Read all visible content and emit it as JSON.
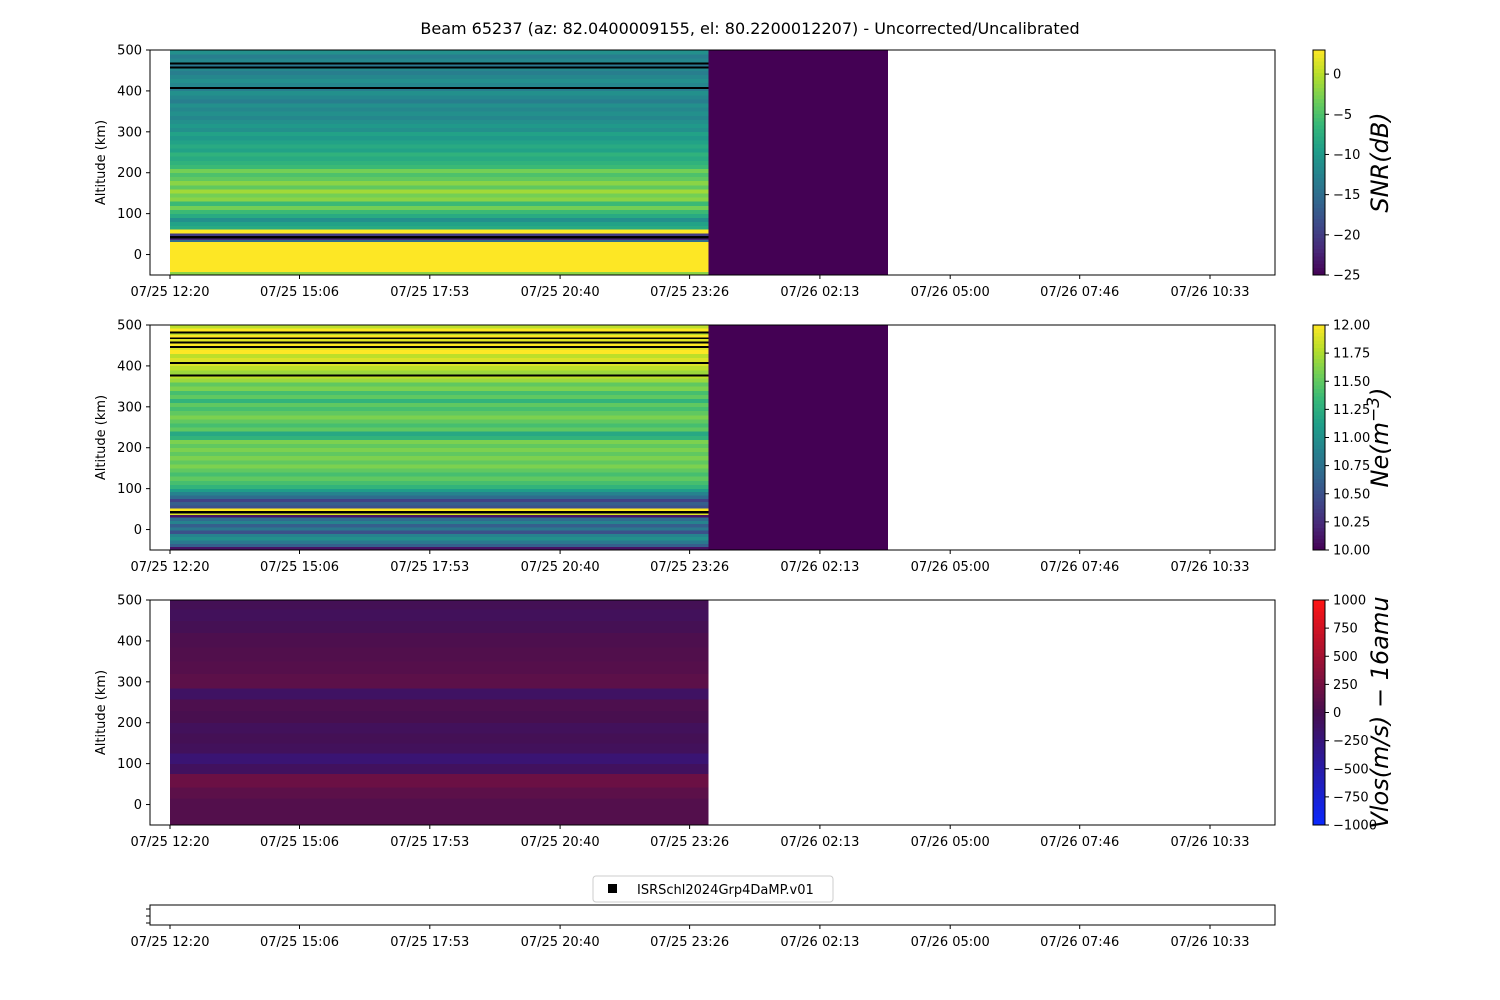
{
  "title": "Beam 65237 (az: 82.0400009155, el: 80.2200012207) - Uncorrected/Uncalibrated",
  "x_tick_labels": [
    "07/25 12:20",
    "07/25 15:06",
    "07/25 17:53",
    "07/25 20:40",
    "07/25 23:26",
    "07/26 02:13",
    "07/26 05:00",
    "07/26 07:46",
    "07/26 10:33"
  ],
  "legend": {
    "label": "ISRSchl2024Grp4DaMP.v01",
    "marker_color": "#000000"
  },
  "colors": {
    "no_data": "#440154",
    "missing": "#000000"
  },
  "chart_data": [
    {
      "type": "heatmap",
      "name": "snr",
      "ylabel": "Altitude (km)",
      "ylim": [
        -50,
        500
      ],
      "y_ticks": [
        "0",
        "100",
        "200",
        "300",
        "400",
        "500"
      ],
      "colorbar": {
        "label": "SNR(dB)",
        "range": [
          -25,
          3
        ],
        "ticks": [
          "0",
          "−5",
          "−10",
          "−15",
          "−20",
          "−25"
        ],
        "colormap": "viridis"
      },
      "data_period": [
        "07/25 12:20",
        "07/25 23:50"
      ],
      "empty_period": [
        "07/25 23:50",
        "07/26 03:40"
      ],
      "rows": [
        {
          "y0": -50,
          "y1": -42,
          "value": -2
        },
        {
          "y0": -42,
          "y1": 32,
          "value": 3
        },
        {
          "y0": 32,
          "y1": 36,
          "value": -15
        },
        {
          "y0": 36,
          "y1": 40,
          "value": -22
        },
        {
          "y0": 40,
          "y1": 46,
          "value": null
        },
        {
          "y0": 46,
          "y1": 52,
          "value": -20
        },
        {
          "y0": 52,
          "y1": 62,
          "value": 3
        },
        {
          "y0": 62,
          "y1": 70,
          "value": -8
        },
        {
          "y0": 70,
          "y1": 80,
          "value": -9
        },
        {
          "y0": 80,
          "y1": 90,
          "value": -11
        },
        {
          "y0": 90,
          "y1": 100,
          "value": -8
        },
        {
          "y0": 100,
          "y1": 110,
          "value": -6
        },
        {
          "y0": 110,
          "y1": 120,
          "value": -3
        },
        {
          "y0": 120,
          "y1": 130,
          "value": -6
        },
        {
          "y0": 130,
          "y1": 140,
          "value": -2
        },
        {
          "y0": 140,
          "y1": 150,
          "value": -3
        },
        {
          "y0": 150,
          "y1": 160,
          "value": -1
        },
        {
          "y0": 160,
          "y1": 170,
          "value": -4
        },
        {
          "y0": 170,
          "y1": 180,
          "value": -2
        },
        {
          "y0": 180,
          "y1": 190,
          "value": -4
        },
        {
          "y0": 190,
          "y1": 200,
          "value": -5
        },
        {
          "y0": 200,
          "y1": 210,
          "value": -3
        },
        {
          "y0": 210,
          "y1": 220,
          "value": -6
        },
        {
          "y0": 220,
          "y1": 230,
          "value": -7
        },
        {
          "y0": 230,
          "y1": 240,
          "value": -8
        },
        {
          "y0": 240,
          "y1": 250,
          "value": -7
        },
        {
          "y0": 250,
          "y1": 260,
          "value": -9
        },
        {
          "y0": 260,
          "y1": 270,
          "value": -8
        },
        {
          "y0": 270,
          "y1": 280,
          "value": -9
        },
        {
          "y0": 280,
          "y1": 290,
          "value": -10
        },
        {
          "y0": 290,
          "y1": 300,
          "value": -9
        },
        {
          "y0": 300,
          "y1": 310,
          "value": -11
        },
        {
          "y0": 310,
          "y1": 320,
          "value": -10
        },
        {
          "y0": 320,
          "y1": 330,
          "value": -11
        },
        {
          "y0": 330,
          "y1": 340,
          "value": -12
        },
        {
          "y0": 340,
          "y1": 350,
          "value": -11
        },
        {
          "y0": 350,
          "y1": 360,
          "value": -12
        },
        {
          "y0": 360,
          "y1": 370,
          "value": -11
        },
        {
          "y0": 370,
          "y1": 380,
          "value": -13
        },
        {
          "y0": 380,
          "y1": 390,
          "value": -12
        },
        {
          "y0": 390,
          "y1": 400,
          "value": -11
        },
        {
          "y0": 400,
          "y1": 405,
          "value": -13
        },
        {
          "y0": 405,
          "y1": 410,
          "value": null
        },
        {
          "y0": 410,
          "y1": 420,
          "value": -12
        },
        {
          "y0": 420,
          "y1": 430,
          "value": -11
        },
        {
          "y0": 430,
          "y1": 440,
          "value": -12
        },
        {
          "y0": 440,
          "y1": 450,
          "value": -13
        },
        {
          "y0": 450,
          "y1": 456,
          "value": -12
        },
        {
          "y0": 456,
          "y1": 460,
          "value": null
        },
        {
          "y0": 460,
          "y1": 465,
          "value": -14
        },
        {
          "y0": 465,
          "y1": 470,
          "value": null
        },
        {
          "y0": 470,
          "y1": 480,
          "value": -12
        },
        {
          "y0": 480,
          "y1": 490,
          "value": -13
        },
        {
          "y0": 490,
          "y1": 500,
          "value": -11
        }
      ]
    },
    {
      "type": "heatmap",
      "name": "ne",
      "ylabel": "Altitude (km)",
      "ylim": [
        -50,
        500
      ],
      "y_ticks": [
        "0",
        "100",
        "200",
        "300",
        "400",
        "500"
      ],
      "colorbar": {
        "label": "Ne(m^-3)",
        "range": [
          10,
          12
        ],
        "ticks": [
          "12.00",
          "11.75",
          "11.50",
          "11.25",
          "11.00",
          "10.75",
          "10.50",
          "10.25",
          "10.00"
        ],
        "colormap": "viridis"
      },
      "data_period": [
        "07/25 12:20",
        "07/25 23:50"
      ],
      "empty_period": [
        "07/25 23:50",
        "07/26 03:40"
      ],
      "rows": [
        {
          "y0": -50,
          "y1": -42,
          "value": 10.1
        },
        {
          "y0": -42,
          "y1": -34,
          "value": 10.6
        },
        {
          "y0": -34,
          "y1": -26,
          "value": 10.8
        },
        {
          "y0": -26,
          "y1": -18,
          "value": 11.0
        },
        {
          "y0": -18,
          "y1": -10,
          "value": 10.9
        },
        {
          "y0": -10,
          "y1": -2,
          "value": 10.5
        },
        {
          "y0": -2,
          "y1": 6,
          "value": 10.8
        },
        {
          "y0": 6,
          "y1": 14,
          "value": 10.6
        },
        {
          "y0": 14,
          "y1": 22,
          "value": 10.9
        },
        {
          "y0": 22,
          "y1": 30,
          "value": 10.7
        },
        {
          "y0": 30,
          "y1": 36,
          "value": 10.1
        },
        {
          "y0": 36,
          "y1": 40,
          "value": 11.9
        },
        {
          "y0": 40,
          "y1": 46,
          "value": null
        },
        {
          "y0": 46,
          "y1": 52,
          "value": 12.0
        },
        {
          "y0": 52,
          "y1": 60,
          "value": 10.5
        },
        {
          "y0": 60,
          "y1": 68,
          "value": 10.6
        },
        {
          "y0": 68,
          "y1": 76,
          "value": 10.4
        },
        {
          "y0": 76,
          "y1": 84,
          "value": 10.7
        },
        {
          "y0": 84,
          "y1": 92,
          "value": 10.9
        },
        {
          "y0": 92,
          "y1": 100,
          "value": 11.1
        },
        {
          "y0": 100,
          "y1": 110,
          "value": 11.3
        },
        {
          "y0": 110,
          "y1": 120,
          "value": 11.4
        },
        {
          "y0": 120,
          "y1": 130,
          "value": 11.5
        },
        {
          "y0": 130,
          "y1": 140,
          "value": 11.4
        },
        {
          "y0": 140,
          "y1": 150,
          "value": 11.5
        },
        {
          "y0": 150,
          "y1": 160,
          "value": 11.6
        },
        {
          "y0": 160,
          "y1": 170,
          "value": 11.5
        },
        {
          "y0": 170,
          "y1": 180,
          "value": 11.6
        },
        {
          "y0": 180,
          "y1": 190,
          "value": 11.5
        },
        {
          "y0": 190,
          "y1": 200,
          "value": 11.6
        },
        {
          "y0": 200,
          "y1": 210,
          "value": 11.5
        },
        {
          "y0": 210,
          "y1": 220,
          "value": 11.6
        },
        {
          "y0": 220,
          "y1": 230,
          "value": 11.3
        },
        {
          "y0": 230,
          "y1": 240,
          "value": 11.2
        },
        {
          "y0": 240,
          "y1": 250,
          "value": 11.5
        },
        {
          "y0": 250,
          "y1": 260,
          "value": 11.4
        },
        {
          "y0": 260,
          "y1": 270,
          "value": 11.5
        },
        {
          "y0": 270,
          "y1": 280,
          "value": 11.6
        },
        {
          "y0": 280,
          "y1": 290,
          "value": 11.5
        },
        {
          "y0": 290,
          "y1": 300,
          "value": 11.4
        },
        {
          "y0": 300,
          "y1": 310,
          "value": 11.5
        },
        {
          "y0": 310,
          "y1": 320,
          "value": 11.3
        },
        {
          "y0": 320,
          "y1": 330,
          "value": 11.5
        },
        {
          "y0": 330,
          "y1": 340,
          "value": 11.4
        },
        {
          "y0": 340,
          "y1": 350,
          "value": 11.6
        },
        {
          "y0": 350,
          "y1": 360,
          "value": 11.5
        },
        {
          "y0": 360,
          "y1": 370,
          "value": 11.7
        },
        {
          "y0": 370,
          "y1": 375,
          "value": 11.8
        },
        {
          "y0": 375,
          "y1": 380,
          "value": null
        },
        {
          "y0": 380,
          "y1": 390,
          "value": 11.7
        },
        {
          "y0": 390,
          "y1": 400,
          "value": 11.8
        },
        {
          "y0": 400,
          "y1": 405,
          "value": 11.9
        },
        {
          "y0": 405,
          "y1": 410,
          "value": null
        },
        {
          "y0": 410,
          "y1": 420,
          "value": 11.9
        },
        {
          "y0": 420,
          "y1": 430,
          "value": 11.8
        },
        {
          "y0": 430,
          "y1": 440,
          "value": 12.0
        },
        {
          "y0": 440,
          "y1": 445,
          "value": 11.9
        },
        {
          "y0": 445,
          "y1": 450,
          "value": null
        },
        {
          "y0": 450,
          "y1": 456,
          "value": 12.0
        },
        {
          "y0": 456,
          "y1": 460,
          "value": null
        },
        {
          "y0": 460,
          "y1": 466,
          "value": 11.9
        },
        {
          "y0": 466,
          "y1": 470,
          "value": null
        },
        {
          "y0": 470,
          "y1": 476,
          "value": 12.0
        },
        {
          "y0": 476,
          "y1": 480,
          "value": 11.8
        },
        {
          "y0": 480,
          "y1": 485,
          "value": null
        },
        {
          "y0": 485,
          "y1": 492,
          "value": 12.0
        },
        {
          "y0": 492,
          "y1": 500,
          "value": 11.8
        }
      ]
    },
    {
      "type": "heatmap",
      "name": "vlos",
      "ylabel": "Altitude (km)",
      "ylim": [
        -50,
        500
      ],
      "y_ticks": [
        "0",
        "100",
        "200",
        "300",
        "400",
        "500"
      ],
      "colorbar": {
        "label": "Vlos(m/s) - 16amu",
        "range": [
          -1000,
          1000
        ],
        "ticks": [
          "1000",
          "750",
          "500",
          "250",
          "0",
          "−250",
          "−500",
          "−750",
          "−1000"
        ],
        "colormap": "bwr-dark"
      },
      "data_period": [
        "07/25 12:20",
        "07/25 23:50"
      ],
      "rows": [
        {
          "y0": -50,
          "y1": 15,
          "value": 70
        },
        {
          "y0": 15,
          "y1": 42,
          "value": 120
        },
        {
          "y0": 42,
          "y1": 75,
          "value": 200
        },
        {
          "y0": 75,
          "y1": 100,
          "value": -80
        },
        {
          "y0": 100,
          "y1": 125,
          "value": -200
        },
        {
          "y0": 125,
          "y1": 150,
          "value": -60
        },
        {
          "y0": 150,
          "y1": 175,
          "value": -30
        },
        {
          "y0": 175,
          "y1": 200,
          "value": -60
        },
        {
          "y0": 200,
          "y1": 230,
          "value": 10
        },
        {
          "y0": 230,
          "y1": 258,
          "value": 40
        },
        {
          "y0": 258,
          "y1": 285,
          "value": -110
        },
        {
          "y0": 285,
          "y1": 320,
          "value": 120
        },
        {
          "y0": 320,
          "y1": 350,
          "value": 80
        },
        {
          "y0": 350,
          "y1": 385,
          "value": 60
        },
        {
          "y0": 385,
          "y1": 420,
          "value": 40
        },
        {
          "y0": 420,
          "y1": 450,
          "value": -20
        },
        {
          "y0": 450,
          "y1": 478,
          "value": -60
        },
        {
          "y0": 478,
          "y1": 500,
          "value": -30
        }
      ]
    },
    {
      "type": "scatter",
      "name": "legend-strip",
      "points": []
    }
  ]
}
